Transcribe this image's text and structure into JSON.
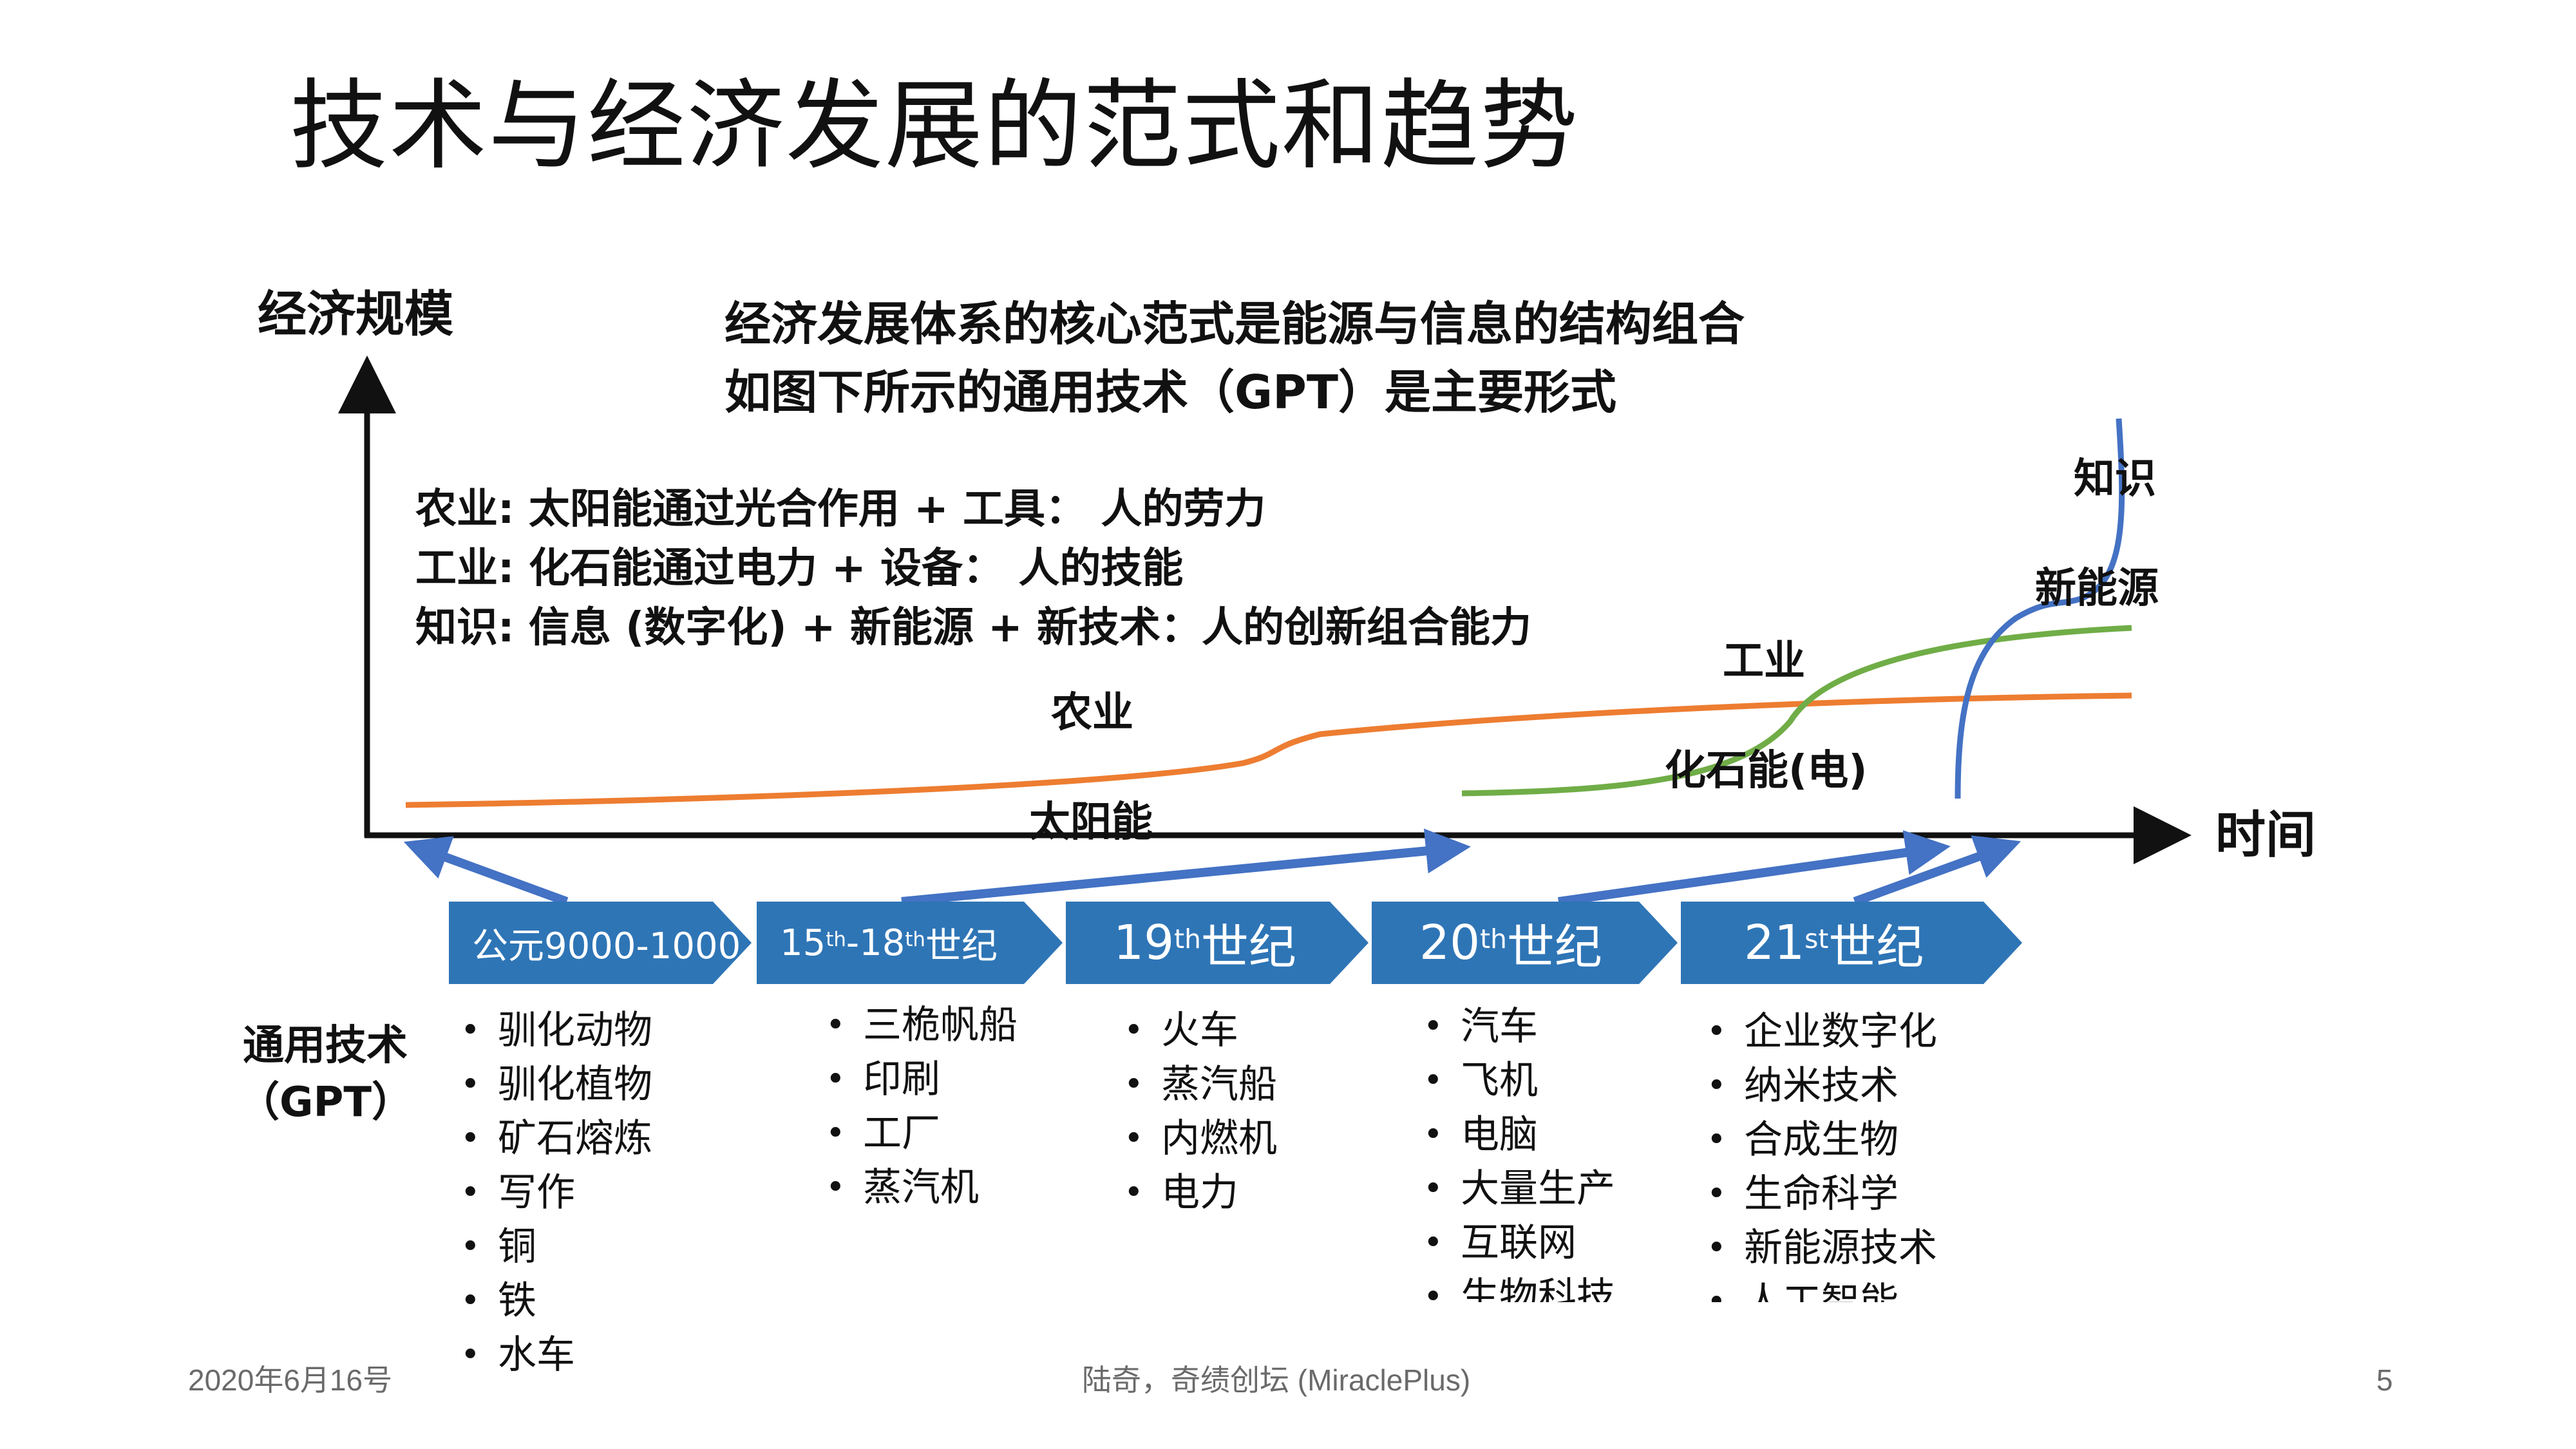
{
  "title": "技术与经济发展的范式和趋势",
  "y_axis_label": "经济规模",
  "x_axis_label": "时间",
  "subtitle": [
    "经济发展体系的核心范式是能源与信息的结构组合",
    "如图下所示的通用技术（GPT）是主要形式"
  ],
  "paradigms": [
    "农业: 太阳能通过光合作用 + 工具： 人的劳力",
    "工业: 化石能通过电力 + 设备： 人的技能",
    "知识: 信息 (数字化) + 新能源 + 新技术：人的创新组合能力"
  ],
  "curve_labels": {
    "agriculture": "农业",
    "solar": "太阳能",
    "industry": "工业",
    "fossil": "化石能(电)",
    "knowledge": "知识",
    "new_energy": "新能源"
  },
  "colors": {
    "agriculture": "#ed7d31",
    "industry": "#70ad47",
    "knowledge": "#4472c4",
    "era": "#2e75b6"
  },
  "eras": [
    {
      "main": "公元9000-1000",
      "sup": "",
      "rest": ""
    },
    {
      "main": "15",
      "sup": "th",
      "rest": "-18",
      "sup2": "th",
      "rest2": " 世纪"
    },
    {
      "main": "19",
      "sup": "th",
      "rest": " 世纪"
    },
    {
      "main": "20",
      "sup": "th",
      "rest": " 世纪"
    },
    {
      "main": "21",
      "sup": "st",
      "rest": " 世纪"
    }
  ],
  "gpt_label": [
    "通用技术",
    "（GPT）"
  ],
  "gpt_lists": [
    [
      "驯化动物",
      "驯化植物",
      "矿石熔炼",
      "写作",
      "铜",
      "铁",
      "水车"
    ],
    [
      "三桅帆船",
      "印刷",
      "工厂",
      "蒸汽机"
    ],
    [
      "火车",
      "蒸汽船",
      "内燃机",
      "电力"
    ],
    [
      "汽车",
      "飞机",
      "电脑",
      "大量生产",
      "互联网",
      "生物科技"
    ],
    [
      "企业数字化",
      "纳米技术",
      "合成生物",
      "生命科学",
      "新能源技术",
      "人工智能"
    ]
  ],
  "footer": {
    "date": "2020年6月16号",
    "author": "陆奇，奇绩创坛 (MiraclePlus)",
    "page": "5"
  }
}
